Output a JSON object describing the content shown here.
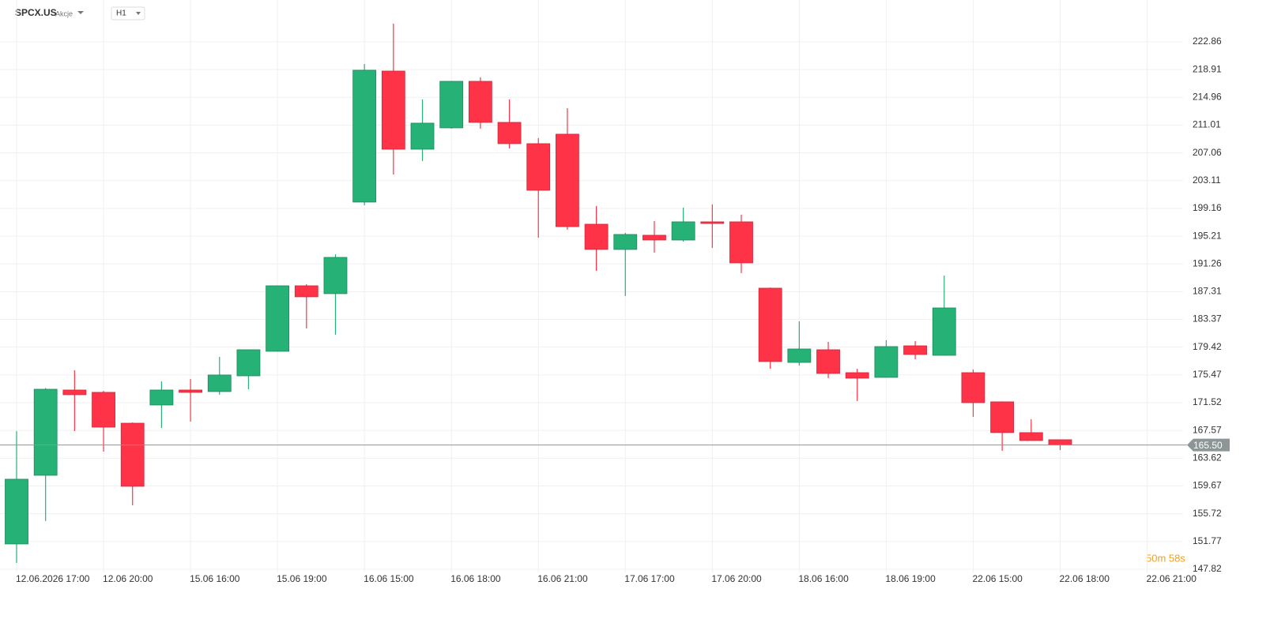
{
  "header": {
    "symbol": "SPCX.US",
    "asset_type": "Akcje",
    "interval": "H1"
  },
  "timer": "50m 58s",
  "chart_data": {
    "type": "candlestick",
    "categories": [
      "12.06.2026 17:00",
      null,
      null,
      "12.06 20:00",
      null,
      null,
      "15.06 16:00",
      null,
      null,
      "15.06 19:00",
      null,
      null,
      "16.06 15:00",
      null,
      null,
      "16.06 18:00",
      null,
      null,
      "16.06 21:00",
      null,
      null,
      "17.06 17:00",
      null,
      null,
      "17.06 20:00",
      null,
      null,
      "18.06 16:00",
      null,
      null,
      "18.06 19:00",
      null,
      null,
      "22.06 15:00",
      null,
      null,
      "22.06 18:00",
      null,
      null,
      "22.06 21:00"
    ],
    "open": [
      151.42,
      161.19,
      173.32,
      172.99,
      168.6,
      171.19,
      173.32,
      173.1,
      175.34,
      178.83,
      188.15,
      187.03,
      200.06,
      218.7,
      207.58,
      210.62,
      217.24,
      211.4,
      208.37,
      209.72,
      196.91,
      193.32,
      195.34,
      194.66,
      197.25,
      197.25,
      187.81,
      177.25,
      179.05,
      175.79,
      175.12,
      179.61,
      178.26,
      175.79,
      171.64,
      167.26,
      166.25,
      null,
      null,
      null
    ],
    "high": [
      167.48,
      173.6,
      176.13,
      173.2,
      168.7,
      174.56,
      174.89,
      178.04,
      179.1,
      188.2,
      188.37,
      192.64,
      219.71,
      225.44,
      214.66,
      217.3,
      217.81,
      214.66,
      209.16,
      213.42,
      199.5,
      195.68,
      197.36,
      199.27,
      199.72,
      198.26,
      187.9,
      183.09,
      180.17,
      176.35,
      180.4,
      180.28,
      189.61,
      176.24,
      171.7,
      169.17,
      166.3,
      null,
      null,
      null
    ],
    "low": [
      148.72,
      154.68,
      167.48,
      164.56,
      156.92,
      167.93,
      168.83,
      172.65,
      173.43,
      178.8,
      182.08,
      181.19,
      199.61,
      203.99,
      205.9,
      210.5,
      210.5,
      207.7,
      195.0,
      196.13,
      190.28,
      186.69,
      192.87,
      194.44,
      193.54,
      189.95,
      176.35,
      176.8,
      175.01,
      171.75,
      175.1,
      177.7,
      178.2,
      169.5,
      164.67,
      166.1,
      164.78,
      null,
      null,
      null
    ],
    "close": [
      160.63,
      173.43,
      172.65,
      168.04,
      159.62,
      173.32,
      172.99,
      175.46,
      179.05,
      188.15,
      186.58,
      192.19,
      218.82,
      207.58,
      211.29,
      217.24,
      211.4,
      208.37,
      201.74,
      196.57,
      193.32,
      195.45,
      194.66,
      197.25,
      197.02,
      191.41,
      177.37,
      179.16,
      175.68,
      175.01,
      179.5,
      178.38,
      185.0,
      171.52,
      167.26,
      166.13,
      165.5,
      null,
      null,
      null
    ],
    "up_color": "#26b276",
    "down_color": "#ff3347",
    "ylim": [
      147.37,
      225.44
    ],
    "yticks": [
      147.82,
      151.77,
      155.72,
      159.67,
      163.62,
      167.57,
      171.52,
      175.47,
      179.42,
      183.37,
      187.31,
      191.26,
      195.21,
      199.16,
      203.11,
      207.06,
      211.01,
      214.96,
      218.91,
      222.86
    ],
    "last_price": {
      "value": 165.5,
      "label": "165.50"
    },
    "grid": true
  }
}
